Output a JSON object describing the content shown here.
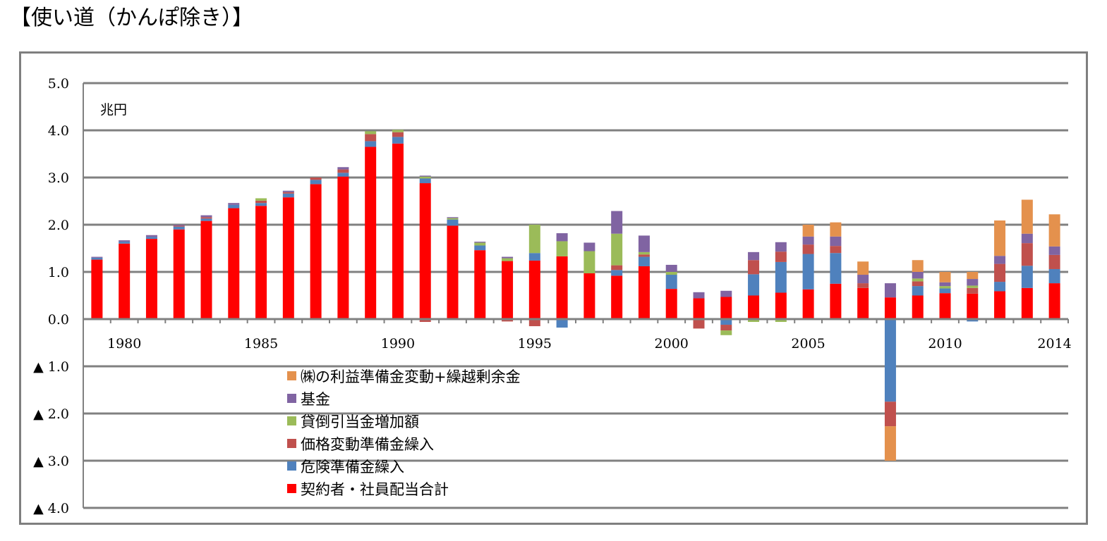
{
  "page": {
    "title": "【使い道（かんぽ除き）】"
  },
  "chart_data": {
    "type": "bar",
    "stacked": true,
    "ylabel": "兆円",
    "ylim": [
      -4.0,
      5.0
    ],
    "yticks": [
      5.0,
      4.0,
      3.0,
      2.0,
      1.0,
      0.0,
      -1.0,
      -2.0,
      -3.0,
      -4.0
    ],
    "ytick_labels": [
      "5.0",
      "4.0",
      "3.0",
      "2.0",
      "1.0",
      "0.0",
      "▲ 1.0",
      "▲ 2.0",
      "▲ 3.0",
      "▲ 4.0"
    ],
    "grid": true,
    "legend_position": "lower-center",
    "categories": [
      "1979",
      "1980",
      "1981",
      "1982",
      "1983",
      "1984",
      "1985",
      "1986",
      "1987",
      "1988",
      "1989",
      "1990",
      "1991",
      "1992",
      "1993",
      "1994",
      "1995",
      "1996",
      "1997",
      "1998",
      "1999",
      "2000",
      "2001",
      "2002",
      "2003",
      "2004",
      "2005",
      "2006",
      "2007",
      "2008",
      "2009",
      "2010",
      "2011",
      "2012",
      "2013",
      "2014"
    ],
    "xtick_labels": [
      {
        "category": "1980",
        "label": "1980"
      },
      {
        "category": "1985",
        "label": "1985"
      },
      {
        "category": "1990",
        "label": "1990"
      },
      {
        "category": "1995",
        "label": "1995"
      },
      {
        "category": "2000",
        "label": "2000"
      },
      {
        "category": "2005",
        "label": "2005"
      },
      {
        "category": "2010",
        "label": "2010"
      },
      {
        "category": "2014",
        "label": "2014"
      }
    ],
    "series": [
      {
        "name": "契約者・社員配当合計",
        "color": "#ff0000",
        "values": [
          1.26,
          1.6,
          1.7,
          1.9,
          2.08,
          2.35,
          2.4,
          2.58,
          2.86,
          3.02,
          3.65,
          3.72,
          2.88,
          1.98,
          1.46,
          1.23,
          1.24,
          1.33,
          0.97,
          0.92,
          1.12,
          0.64,
          0.44,
          0.47,
          0.5,
          0.56,
          0.63,
          0.75,
          0.66,
          0.46,
          0.5,
          0.55,
          0.54,
          0.59,
          0.66,
          0.76
        ]
      },
      {
        "name": "危険準備金繰入",
        "color": "#4f81bd",
        "values": [
          0.04,
          0.04,
          0.04,
          0.06,
          0.05,
          0.07,
          0.06,
          0.08,
          0.09,
          0.08,
          0.12,
          0.14,
          0.1,
          0.13,
          0.1,
          0.0,
          0.16,
          -0.18,
          0.0,
          0.12,
          0.2,
          0.3,
          0.0,
          -0.12,
          0.45,
          0.65,
          0.75,
          0.65,
          0.0,
          -1.75,
          0.2,
          0.1,
          -0.05,
          0.2,
          0.47,
          0.3
        ]
      },
      {
        "name": "価格変動準備金繰入",
        "color": "#c0504d",
        "values": [
          0.0,
          0.0,
          0.0,
          0.02,
          0.03,
          0.0,
          0.05,
          0.03,
          0.05,
          0.07,
          0.15,
          0.1,
          -0.06,
          0.0,
          0.0,
          -0.05,
          -0.15,
          0.0,
          0.0,
          0.1,
          0.05,
          0.0,
          -0.2,
          -0.12,
          0.3,
          0.22,
          0.2,
          0.15,
          0.1,
          -0.52,
          0.1,
          0.0,
          0.12,
          0.38,
          0.48,
          0.3
        ]
      },
      {
        "name": "貸倒引当金増加額",
        "color": "#9bbb59",
        "values": [
          0.0,
          0.0,
          0.0,
          0.0,
          0.0,
          0.0,
          0.05,
          0.0,
          0.0,
          0.0,
          0.06,
          0.05,
          0.04,
          0.03,
          0.06,
          0.06,
          0.6,
          0.32,
          0.47,
          0.67,
          0.05,
          0.06,
          0.0,
          -0.1,
          -0.06,
          -0.06,
          0.0,
          0.0,
          0.0,
          0.0,
          0.06,
          0.05,
          0.05,
          0.0,
          0.0,
          0.0
        ]
      },
      {
        "name": "基金",
        "color": "#8064a2",
        "values": [
          0.02,
          0.03,
          0.04,
          0.02,
          0.04,
          0.04,
          0.0,
          0.03,
          0.0,
          0.05,
          0.0,
          0.0,
          0.02,
          0.02,
          0.02,
          0.03,
          0.0,
          0.17,
          0.18,
          0.48,
          0.35,
          0.15,
          0.13,
          0.13,
          0.17,
          0.2,
          0.17,
          0.2,
          0.18,
          0.3,
          0.14,
          0.08,
          0.14,
          0.17,
          0.2,
          0.18
        ]
      },
      {
        "name": "(株)の利益準備金変動+繰越剰余金",
        "color": "#e4914d",
        "values": [
          0,
          0,
          0,
          0,
          0,
          0,
          0,
          0,
          0,
          0,
          0,
          0,
          0,
          0,
          0,
          0,
          0,
          0,
          0,
          0,
          0,
          0,
          0,
          0,
          0,
          0,
          0.25,
          0.3,
          0.28,
          -0.73,
          0.25,
          0.22,
          0.15,
          0.75,
          0.72,
          0.68
        ]
      }
    ],
    "legend_order": [
      "(株)の利益準備金変動+繰越剰余金",
      "基金",
      "貸倒引当金増加額",
      "価格変動準備金繰入",
      "危険準備金繰入",
      "契約者・社員配当合計"
    ],
    "legend_labels": [
      "㈱の利益準備金変動+繰越剰余金",
      "基金",
      "貸倒引当金増加額",
      "価格変動準備金繰入",
      "危険準備金繰入",
      "契約者・社員配当合計"
    ]
  }
}
